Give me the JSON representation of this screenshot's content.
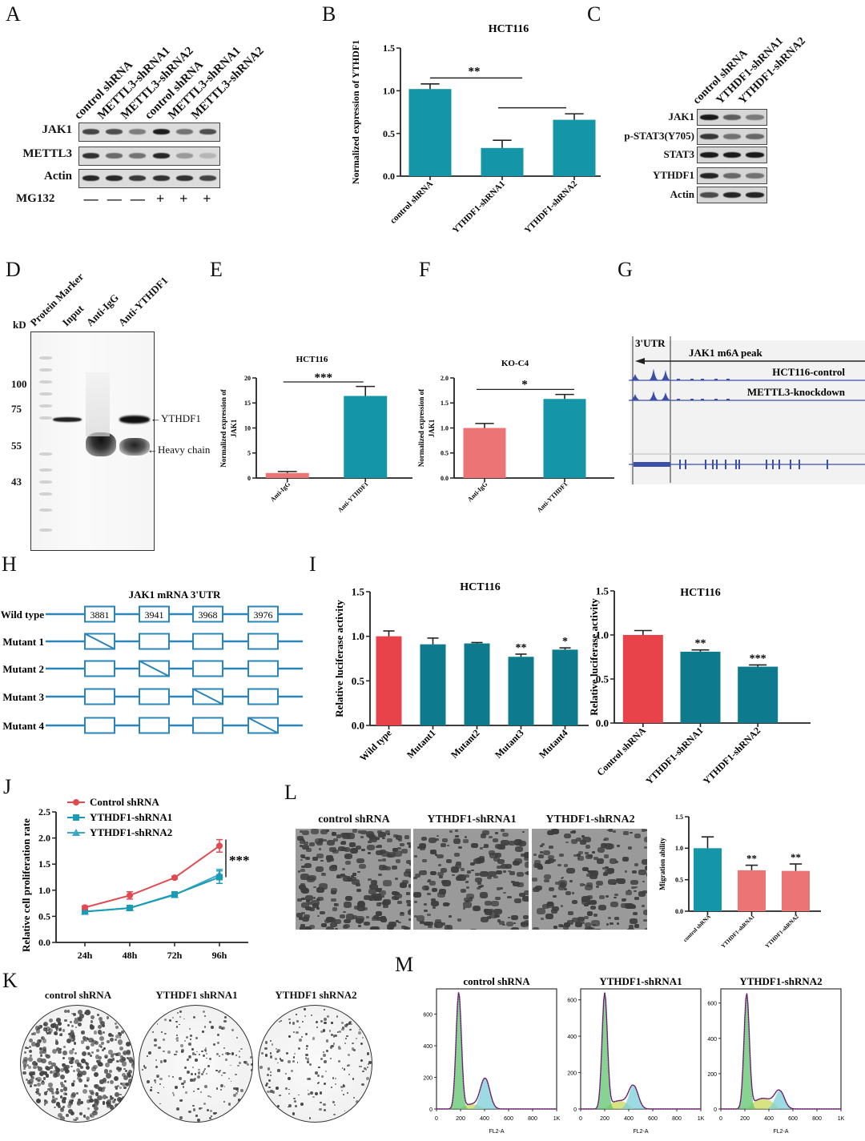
{
  "panels": {
    "A": {
      "letter": "A",
      "lanes": [
        "control shRNA",
        "METTL3-shRNA1",
        "METTL3-shRNA2",
        "control shRNA",
        "METTL3-shRNA1",
        "METTL3-shRNA2"
      ],
      "rows": [
        "JAK1",
        "METTL3",
        "Actin"
      ],
      "treatment_label": "MG132",
      "treatment": [
        "—",
        "—",
        "—",
        "+",
        "+",
        "+"
      ],
      "band_intensity": {
        "JAK1": [
          0.75,
          0.7,
          0.45,
          0.95,
          0.5,
          0.7
        ],
        "METTL3": [
          0.85,
          0.55,
          0.5,
          0.9,
          0.3,
          0.15
        ],
        "Actin": [
          0.9,
          0.9,
          0.8,
          0.85,
          0.85,
          0.75
        ]
      }
    },
    "B": {
      "letter": "B"
    },
    "C": {
      "letter": "C",
      "lanes": [
        "control shRNA",
        "YTHDF1-shRNA1",
        "YTHDF1-shRNA2"
      ],
      "rows": [
        "JAK1",
        "p-STAT3(Y705)",
        "STAT3",
        "YTHDF1",
        "Actin"
      ],
      "band_intensity": {
        "JAK1": [
          0.95,
          0.6,
          0.45
        ],
        "p-STAT3(Y705)": [
          0.8,
          0.5,
          0.55
        ],
        "STAT3": [
          0.95,
          0.95,
          0.95
        ],
        "YTHDF1": [
          0.9,
          0.55,
          0.5
        ],
        "Actin": [
          0.7,
          0.9,
          0.9
        ]
      }
    },
    "D": {
      "letter": "D",
      "kd_label": "kD",
      "lanes": [
        "Protein Marker",
        "Input",
        "Anti-IgG",
        "Anti-YTHDF1"
      ],
      "markers": [
        "100",
        "75",
        "55",
        "43"
      ],
      "annotations": [
        "YTHDF1",
        "Heavy chain"
      ]
    },
    "E": {
      "letter": "E"
    },
    "F": {
      "letter": "F"
    },
    "G": {
      "letter": "G",
      "region_label": "3'UTR",
      "peak_label": "JAK1  m6A peak",
      "tracks": [
        "HCT116-control",
        "METTL3-knockdown"
      ]
    },
    "H": {
      "letter": "H",
      "title": "JAK1 mRNA 3'UTR",
      "sites": [
        "3881",
        "3941",
        "3968",
        "3976"
      ],
      "rows": [
        {
          "label": "Wild type",
          "mutated_site": null
        },
        {
          "label": "Mutant 1",
          "mutated_site": 0
        },
        {
          "label": "Mutant 2",
          "mutated_site": 1
        },
        {
          "label": "Mutant 3",
          "mutated_site": 2
        },
        {
          "label": "Mutant 4",
          "mutated_site": 3
        }
      ]
    },
    "I": {
      "letter": "I"
    },
    "J": {
      "letter": "J"
    },
    "K": {
      "letter": "K",
      "plates": [
        "control shRNA",
        "YTHDF1 shRNA1",
        "YTHDF1 shRNA2"
      ],
      "colony_density": [
        1.0,
        0.45,
        0.45
      ]
    },
    "L": {
      "letter": "L",
      "images": [
        "control shRNA",
        "YTHDF1-shRNA1",
        "YTHDF1-shRNA2"
      ]
    },
    "M": {
      "letter": "M"
    }
  },
  "colors": {
    "teal": "#1596a8",
    "dark_teal": "#0e7a8e",
    "salmon": "#ec7474",
    "red": "#e8424a",
    "blue_line": "#3b4fa8",
    "diagram_blue": "#2a85b8",
    "j_control": "#e04a50",
    "j_sh1": "#1a9bb5",
    "j_sh2": "#3aa7c9"
  },
  "chart_data": [
    {
      "id": "B",
      "type": "bar",
      "title": "HCT116",
      "ylabel": "Normalized expression of YTHDF1",
      "xlabel": "",
      "categories": [
        "control shRNA",
        "YTHDF1-shRNA1",
        "YTHDF1-shRNA2"
      ],
      "values": [
        1.02,
        0.33,
        0.66
      ],
      "errors": [
        0.06,
        0.09,
        0.07
      ],
      "ylim": [
        0,
        1.5
      ],
      "yticks": [
        "0.0",
        "0.5",
        "1.0",
        "1.5"
      ],
      "significance": [
        {
          "from": 0,
          "to": 1,
          "label": "**"
        },
        {
          "from": 1,
          "to": 2,
          "label": ""
        }
      ]
    },
    {
      "id": "E",
      "type": "bar",
      "title": "HCT116",
      "ylabel": "Normalized expression of JAK1",
      "categories": [
        "Anti-IgG",
        "Anti-YTHDF1"
      ],
      "values": [
        1.0,
        16.4
      ],
      "errors": [
        0.3,
        1.9
      ],
      "ylim": [
        0,
        20
      ],
      "yticks": [
        "0",
        "5",
        "10",
        "15",
        "20"
      ],
      "significance": [
        {
          "from": 0,
          "to": 1,
          "label": "***"
        }
      ]
    },
    {
      "id": "F",
      "type": "bar",
      "title": "KO-C4",
      "ylabel": "Normalized expression of JAK1",
      "categories": [
        "Anti-IgG",
        "Anti-YTHDF1"
      ],
      "values": [
        1.0,
        1.58
      ],
      "errors": [
        0.09,
        0.09
      ],
      "ylim": [
        0,
        2.0
      ],
      "yticks": [
        "0.0",
        "0.5",
        "1.0",
        "1.5",
        "2.0"
      ],
      "significance": [
        {
          "from": 0,
          "to": 1,
          "label": "*"
        }
      ]
    },
    {
      "id": "I-left",
      "type": "bar",
      "title": "HCT116",
      "ylabel": "Relative luciferase activity",
      "categories": [
        "Wild type",
        "Mutant1",
        "Mutant2",
        "Mutant3",
        "Mutant4"
      ],
      "values": [
        1.0,
        0.91,
        0.92,
        0.77,
        0.85
      ],
      "errors": [
        0.06,
        0.07,
        0.01,
        0.03,
        0.02
      ],
      "stars": [
        "",
        "",
        "",
        "**",
        "*"
      ],
      "ylim": [
        0,
        1.5
      ],
      "yticks": [
        "0.0",
        "0.5",
        "1.0",
        "1.5"
      ]
    },
    {
      "id": "I-right",
      "type": "bar",
      "title": "HCT116",
      "ylabel": "Relative luciferase activity",
      "categories": [
        "Control shRNA",
        "YTHDF1-shRNA1",
        "YTHDF1-shRNA2"
      ],
      "values": [
        1.0,
        0.81,
        0.64
      ],
      "errors": [
        0.05,
        0.02,
        0.02
      ],
      "stars": [
        "",
        "**",
        "***"
      ],
      "ylim": [
        0,
        1.5
      ],
      "yticks": [
        "0.0",
        "0.5",
        "1.0",
        "1.5"
      ]
    },
    {
      "id": "J",
      "type": "line",
      "title": "",
      "ylabel": "Relative cell proliferation rate",
      "x": [
        "24h",
        "48h",
        "72h",
        "96h"
      ],
      "series": [
        {
          "name": "Control shRNA",
          "values": [
            0.67,
            0.9,
            1.24,
            1.85
          ],
          "errors": [
            0.03,
            0.07,
            0.03,
            0.12
          ],
          "marker": "circle"
        },
        {
          "name": "YTHDF1-shRNA1",
          "values": [
            0.59,
            0.66,
            0.92,
            1.25
          ],
          "errors": [
            0.03,
            0.03,
            0.03,
            0.12
          ],
          "marker": "square"
        },
        {
          "name": "YTHDF1-shRNA2",
          "values": [
            0.59,
            0.66,
            0.91,
            1.3
          ],
          "errors": [
            0.03,
            0.03,
            0.03,
            0.1
          ],
          "marker": "triangle"
        }
      ],
      "ylim": [
        0,
        2.5
      ],
      "yticks": [
        "0.0",
        "0.5",
        "1.0",
        "1.5",
        "2.0",
        "2.5"
      ],
      "annotation": "***",
      "legend": "top-left"
    },
    {
      "id": "L-bar",
      "type": "bar",
      "title": "",
      "ylabel": "Migration ability",
      "categories": [
        "control shRNA",
        "YTHDF1-shRNA1",
        "YTHDF1-shRNA2"
      ],
      "values": [
        1.0,
        0.65,
        0.64
      ],
      "errors": [
        0.18,
        0.08,
        0.11
      ],
      "stars": [
        "",
        "**",
        "**"
      ],
      "ylim": [
        0,
        1.5
      ],
      "yticks": [
        "0.0",
        "0.5",
        "1.0",
        "1.5"
      ]
    },
    {
      "id": "M",
      "type": "area",
      "xlabel": "FL2-A",
      "xticks": [
        "0",
        "200",
        "400",
        "600",
        "800",
        "1K"
      ],
      "xlim": [
        0,
        1000
      ],
      "panels": [
        {
          "title": "control shRNA",
          "ylim": [
            0,
            760
          ],
          "yticks": [
            "0",
            "200",
            "400",
            "600"
          ],
          "g1_peak": {
            "x": 185,
            "y": 740
          },
          "s_level": 30,
          "g2_peak": {
            "x": 405,
            "y": 195
          }
        },
        {
          "title": "YTHDF1-shRNA1",
          "ylim": [
            0,
            660
          ],
          "yticks": [
            "0",
            "200",
            "400",
            "600"
          ],
          "g1_peak": {
            "x": 200,
            "y": 640
          },
          "s_level": 45,
          "g2_peak": {
            "x": 440,
            "y": 130
          }
        },
        {
          "title": "YTHDF1-shRNA2",
          "ylim": [
            0,
            680
          ],
          "yticks": [
            "0",
            "200",
            "400",
            "600"
          ],
          "g1_peak": {
            "x": 215,
            "y": 655
          },
          "s_level": 60,
          "g2_peak": {
            "x": 490,
            "y": 105
          }
        }
      ]
    }
  ]
}
